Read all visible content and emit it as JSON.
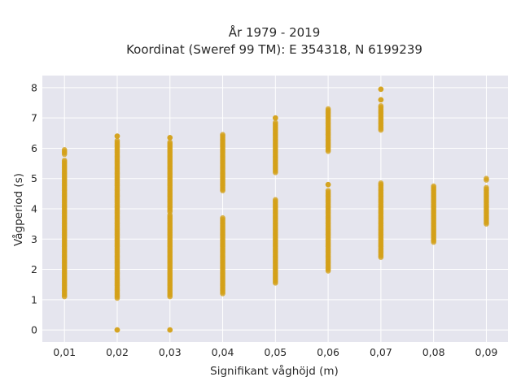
{
  "chart_data": {
    "type": "scatter",
    "title": "År 1979 - 2019",
    "subtitle": "Koordinat (Sweref 99 TM): E 354318, N 6199239",
    "xlabel": "Signifikant våghöjd (m)",
    "ylabel": "Vågperiod (s)",
    "x_ticks": [
      "0,01",
      "0,02",
      "0,03",
      "0,04",
      "0,05",
      "0,06",
      "0,07",
      "0,08",
      "0,09"
    ],
    "y_ticks": [
      "0",
      "1",
      "2",
      "3",
      "4",
      "5",
      "6",
      "7",
      "8"
    ],
    "xlim": [
      0.0058,
      0.0941
    ],
    "ylim": [
      -0.4,
      8.4
    ],
    "grid": true,
    "legend": "none",
    "colors": {
      "marker": "#D4A017",
      "plot_bg": "#E5E5EE",
      "grid": "#ffffff",
      "paper": "#ffffff"
    },
    "series": [
      {
        "clusters": [
          {
            "x": 0.01,
            "y_min": 1.1,
            "y_max": 5.6
          },
          {
            "x": 0.01,
            "y_min": 5.8,
            "y_max": 5.95
          },
          {
            "x": 0.02,
            "y_min": 1.05,
            "y_max": 6.25
          },
          {
            "x": 0.02,
            "y_min": 6.4,
            "y_max": 6.4
          },
          {
            "x": 0.02,
            "y_min": 0,
            "y_max": 0
          },
          {
            "x": 0.03,
            "y_min": 1.1,
            "y_max": 3.8
          },
          {
            "x": 0.03,
            "y_min": 3.9,
            "y_max": 6.2
          },
          {
            "x": 0.03,
            "y_min": 6.35,
            "y_max": 6.35
          },
          {
            "x": 0.03,
            "y_min": 0,
            "y_max": 0
          },
          {
            "x": 0.04,
            "y_min": 1.2,
            "y_max": 3.7
          },
          {
            "x": 0.04,
            "y_min": 4.6,
            "y_max": 6.45
          },
          {
            "x": 0.05,
            "y_min": 1.55,
            "y_max": 4.3
          },
          {
            "x": 0.05,
            "y_min": 5.2,
            "y_max": 6.85
          },
          {
            "x": 0.05,
            "y_min": 7.0,
            "y_max": 7.0
          },
          {
            "x": 0.06,
            "y_min": 1.95,
            "y_max": 4.6
          },
          {
            "x": 0.06,
            "y_min": 4.8,
            "y_max": 4.8
          },
          {
            "x": 0.06,
            "y_min": 5.9,
            "y_max": 7.3
          },
          {
            "x": 0.07,
            "y_min": 2.4,
            "y_max": 4.85
          },
          {
            "x": 0.07,
            "y_min": 6.6,
            "y_max": 7.4
          },
          {
            "x": 0.07,
            "y_min": 7.6,
            "y_max": 7.6
          },
          {
            "x": 0.07,
            "y_min": 7.95,
            "y_max": 7.95
          },
          {
            "x": 0.08,
            "y_min": 2.9,
            "y_max": 4.75
          },
          {
            "x": 0.09,
            "y_min": 3.5,
            "y_max": 4.7
          },
          {
            "x": 0.09,
            "y_min": 4.95,
            "y_max": 5.0
          }
        ]
      }
    ]
  }
}
